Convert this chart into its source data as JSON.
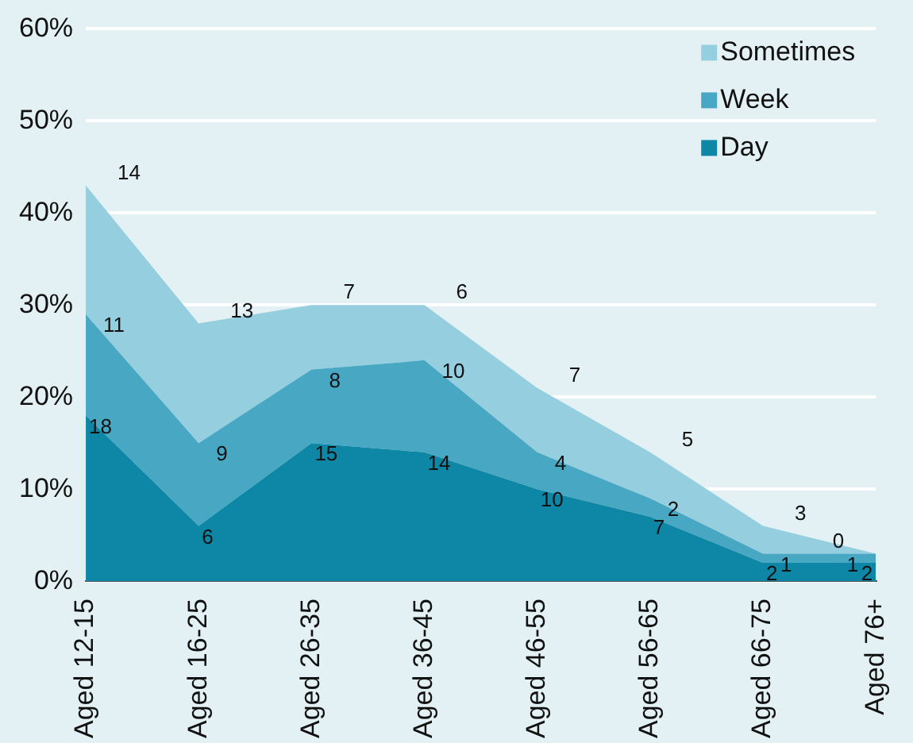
{
  "chart_data": {
    "type": "area",
    "stacked": true,
    "categories": [
      "Aged 12-15",
      "Aged 16-25",
      "Aged 26-35",
      "Aged 36-45",
      "Aged 46-55",
      "Aged 56-65",
      "Aged 66-75",
      "Aged 76+"
    ],
    "series": [
      {
        "name": "Day",
        "color": "#0e86a6",
        "values": [
          18,
          6,
          15,
          14,
          10,
          7,
          2,
          2
        ]
      },
      {
        "name": "Week",
        "color": "#48a7c3",
        "values": [
          11,
          9,
          8,
          10,
          4,
          2,
          1,
          1
        ]
      },
      {
        "name": "Sometimes",
        "color": "#95cfdf",
        "values": [
          14,
          13,
          7,
          6,
          7,
          5,
          3,
          0
        ]
      }
    ],
    "ylim": [
      0,
      60
    ],
    "yticks": [
      {
        "value": 0,
        "label": "0%"
      },
      {
        "value": 10,
        "label": "10%"
      },
      {
        "value": 20,
        "label": "20%"
      },
      {
        "value": 30,
        "label": "30%"
      },
      {
        "value": 40,
        "label": "40%"
      },
      {
        "value": 50,
        "label": "50%"
      },
      {
        "value": 60,
        "label": "60%"
      }
    ],
    "grid": "y",
    "legend": "top right",
    "data_labels": true
  }
}
